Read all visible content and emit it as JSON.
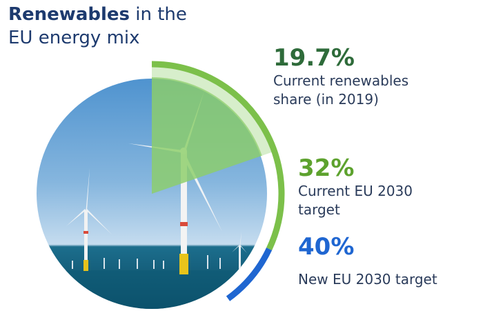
{
  "title": {
    "strong": "Renewables",
    "rest_line1": " in the",
    "line2": "EU energy mix"
  },
  "colors": {
    "current": "#2e6b3a",
    "target_32": "#7cc04a",
    "target_40": "#1f66d1",
    "arc_32": "#7cc04a",
    "arc_40": "#1f66d1",
    "wedge_fill": "#8dcf6a"
  },
  "chart_data": {
    "type": "pie",
    "values": [
      19.7,
      32,
      40
    ],
    "unit": "%",
    "items": [
      {
        "value": 19.7,
        "value_text": "19.7%",
        "label_line1": "Current renewables",
        "label_line2": "share (in 2019)"
      },
      {
        "value": 32,
        "value_text": "32%",
        "label_line1": "Current EU 2030",
        "label_line2": "target"
      },
      {
        "value": 40,
        "value_text": "40%",
        "label_line1": "New EU 2030 target",
        "label_line2": ""
      }
    ]
  }
}
